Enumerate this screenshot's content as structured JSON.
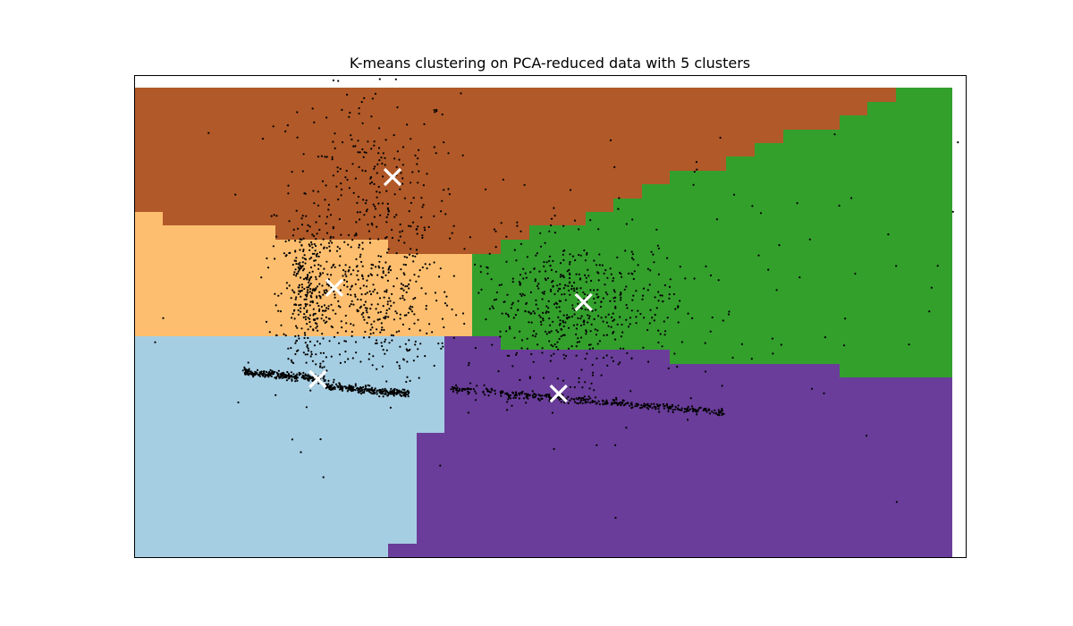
{
  "chart_data": {
    "type": "scatter",
    "title": "K-means clustering on PCA-reduced data with 5 clusters",
    "xlabel": "",
    "ylabel": "",
    "axis_ticks": "none",
    "grid": false,
    "legend": "none",
    "background": "decision-region map (5 clusters)",
    "region_colors": {
      "brown": "#b15928",
      "light_orange": "#fdbf6f",
      "green": "#33a02c",
      "light_blue": "#a6cee3",
      "purple": "#6a3d9a"
    },
    "point_color": "#000000",
    "centroid_color": "#ffffff",
    "centroid_marker": "x",
    "centroids": [
      {
        "cluster": "brown",
        "x": 0.31,
        "y": 0.79
      },
      {
        "cluster": "light_orange",
        "x": 0.24,
        "y": 0.56
      },
      {
        "cluster": "green",
        "x": 0.54,
        "y": 0.53
      },
      {
        "cluster": "light_blue",
        "x": 0.22,
        "y": 0.37
      },
      {
        "cluster": "purple",
        "x": 0.51,
        "y": 0.34
      }
    ],
    "point_groups": [
      {
        "name": "upper-left cloud",
        "n": 360,
        "cx": 0.28,
        "cy": 0.72,
        "sx": 0.055,
        "sy": 0.14
      },
      {
        "name": "left column",
        "n": 320,
        "cx": 0.21,
        "cy": 0.54,
        "sx": 0.018,
        "sy": 0.08
      },
      {
        "name": "mid cloud",
        "n": 260,
        "cx": 0.29,
        "cy": 0.52,
        "sx": 0.035,
        "sy": 0.08
      },
      {
        "name": "right cloud",
        "n": 520,
        "cx": 0.53,
        "cy": 0.52,
        "sx": 0.06,
        "sy": 0.07
      },
      {
        "name": "scattered",
        "n": 140,
        "cx": 0.55,
        "cy": 0.5,
        "sx": 0.22,
        "sy": 0.18
      }
    ],
    "point_bands": [
      {
        "name": "band 1",
        "n": 260,
        "x0": 0.13,
        "y0": 0.385,
        "x1": 0.23,
        "y1": 0.37,
        "width": 0.004
      },
      {
        "name": "band 2",
        "n": 260,
        "x0": 0.23,
        "y0": 0.355,
        "x1": 0.33,
        "y1": 0.34,
        "width": 0.004
      },
      {
        "name": "band 3",
        "n": 380,
        "x0": 0.38,
        "y0": 0.35,
        "x1": 0.71,
        "y1": 0.3,
        "width": 0.004
      }
    ]
  }
}
